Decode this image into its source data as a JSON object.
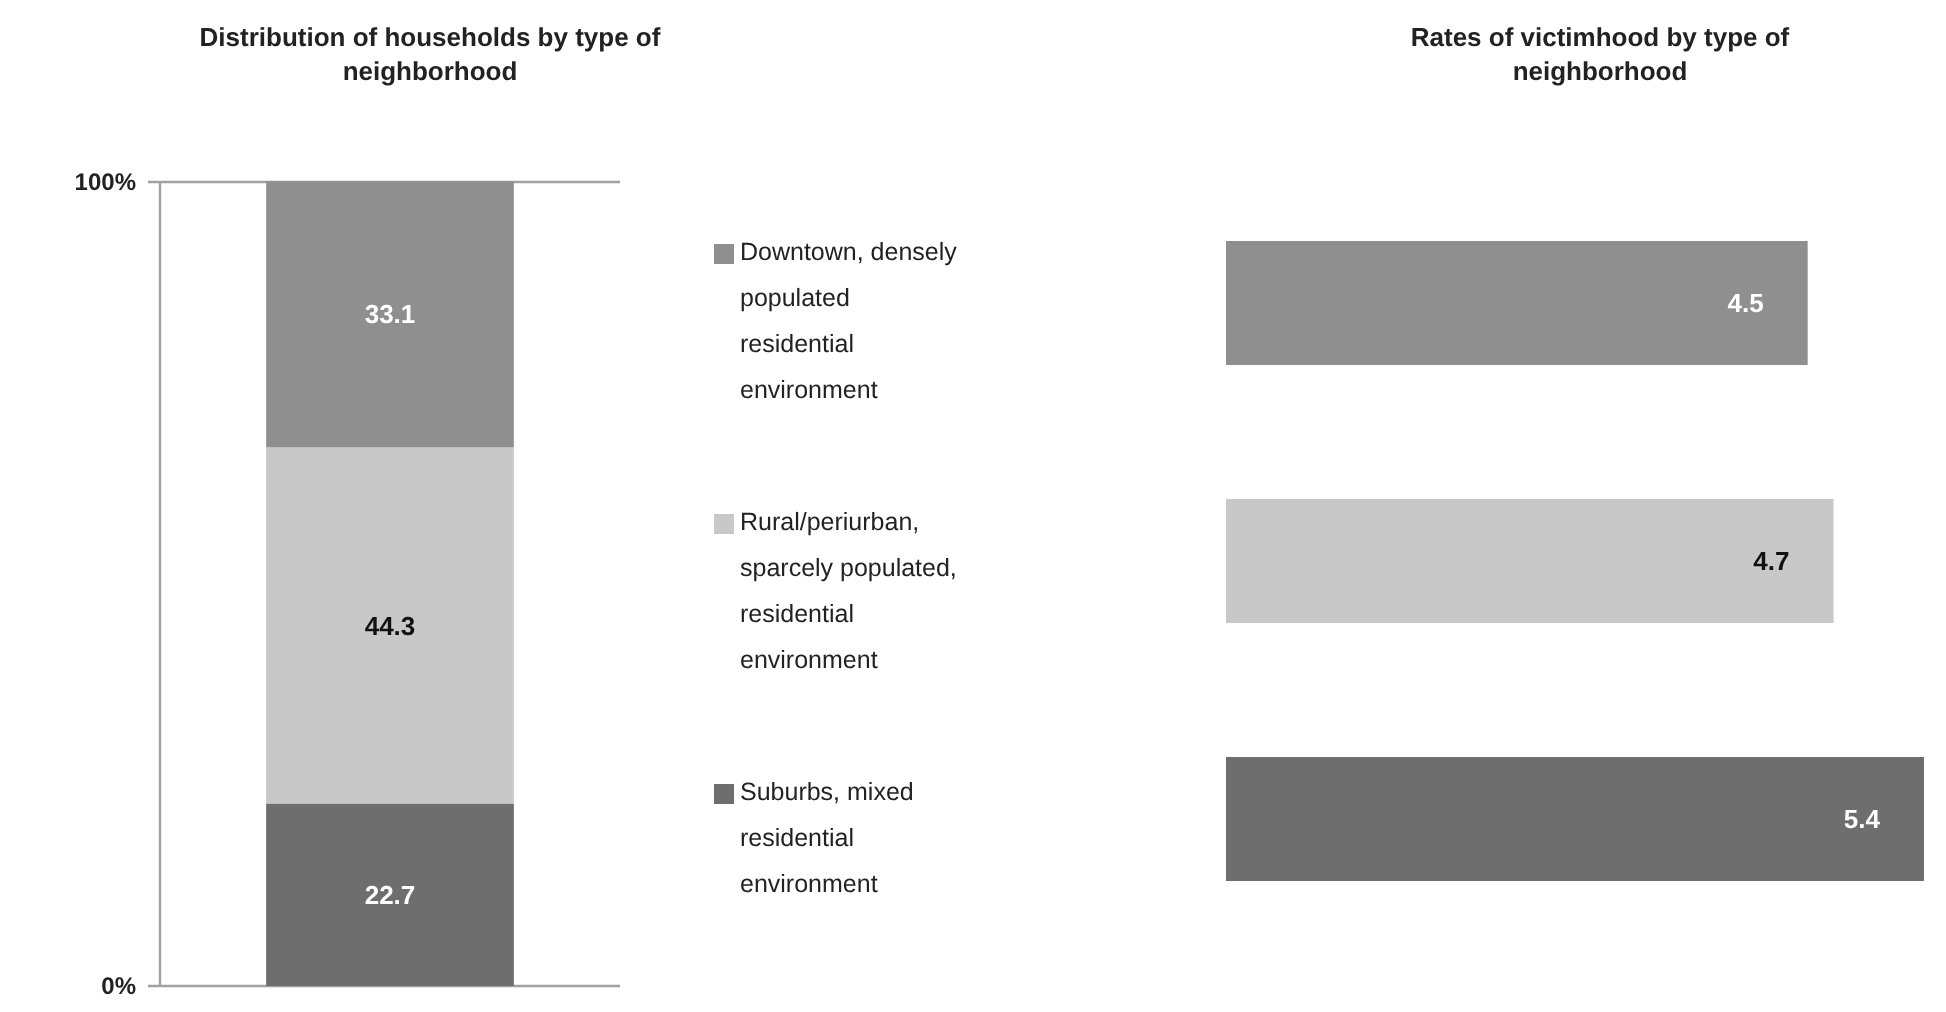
{
  "chart_data": [
    {
      "type": "bar",
      "title": "Distribution of households by type of neighborhood",
      "categories": [
        null
      ],
      "stacked": true,
      "series": [
        {
          "name": "Suburbs, mixed residential environment",
          "color": "#6e6e6e",
          "values": [
            22.7
          ]
        },
        {
          "name": "Rural/periurban, sparcely populated, residential environment",
          "color": "#c8c8c8",
          "values": [
            44.3
          ]
        },
        {
          "name": "Downtown, densely populated residential environment",
          "color": "#8f8f8f",
          "values": [
            33.1
          ]
        }
      ],
      "ylim": [
        0,
        100
      ],
      "yticks": [
        {
          "value": 0,
          "label": "0%"
        },
        {
          "value": 100,
          "label": "100%"
        }
      ],
      "grid": "y",
      "legend": "right",
      "data_labels": true
    },
    {
      "type": "bar",
      "title": "Rates of victimhood by type of neighborhood",
      "orientation": "horizontal",
      "categories": [
        null,
        null,
        null
      ],
      "values": [
        4.5,
        4.7,
        5.4
      ],
      "colors": [
        "#8f8f8f",
        "#c8c8c8",
        "#6e6e6e"
      ],
      "data_labels": true
    }
  ]
}
